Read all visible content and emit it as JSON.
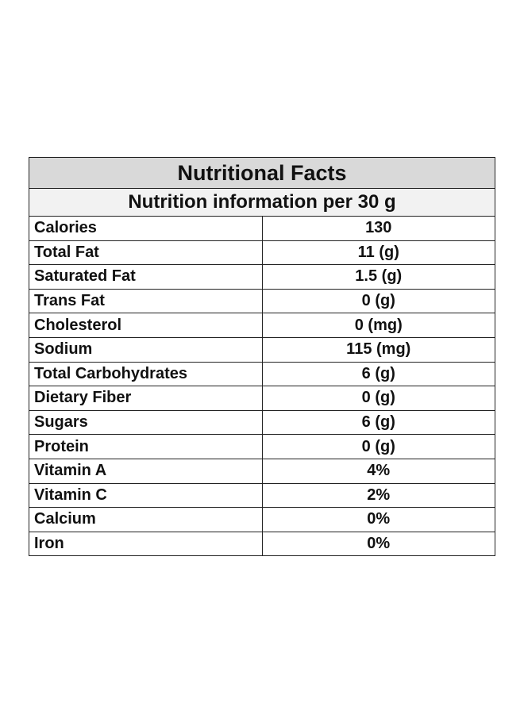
{
  "title": "Nutritional Facts",
  "subtitle": "Nutrition information per 30 g",
  "rows": [
    {
      "label": "Calories",
      "value": "130"
    },
    {
      "label": "Total Fat",
      "value": "11 (g)"
    },
    {
      "label": "Saturated Fat",
      "value": "1.5 (g)"
    },
    {
      "label": "Trans Fat",
      "value": "0 (g)"
    },
    {
      "label": "Cholesterol",
      "value": "0 (mg)"
    },
    {
      "label": "Sodium",
      "value": "115 (mg)"
    },
    {
      "label": "Total Carbohydrates",
      "value": "6 (g)"
    },
    {
      "label": "Dietary Fiber",
      "value": "0 (g)"
    },
    {
      "label": "Sugars",
      "value": "6 (g)"
    },
    {
      "label": "Protein",
      "value": "0 (g)"
    },
    {
      "label": "Vitamin A",
      "value": "4%"
    },
    {
      "label": "Vitamin C",
      "value": "2%"
    },
    {
      "label": "Calcium",
      "value": "0%"
    },
    {
      "label": "Iron",
      "value": "0%"
    }
  ],
  "colors": {
    "title_background": "#d9d9d9",
    "subtitle_background": "#f2f2f2",
    "border": "#222222",
    "text": "#111111"
  }
}
